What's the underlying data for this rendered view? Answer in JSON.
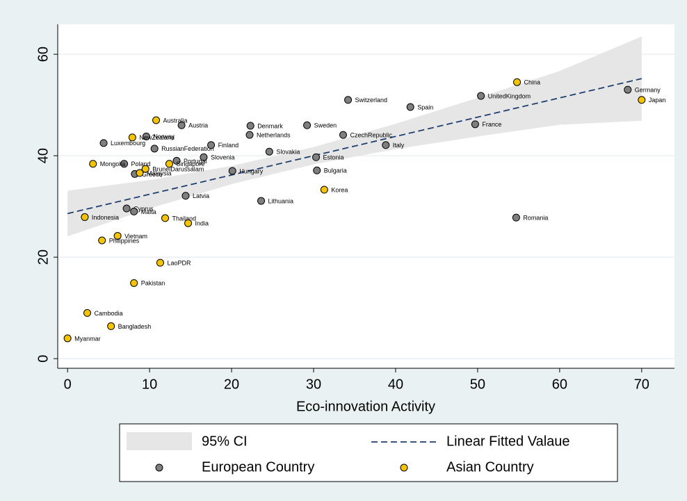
{
  "chart_data": {
    "type": "scatter",
    "xlabel": "Eco-innovation Activity",
    "xlim": [
      -1.2,
      74
    ],
    "ylim": [
      -1.9,
      65.9
    ],
    "xticks": [
      0,
      10,
      20,
      30,
      40,
      50,
      60,
      70
    ],
    "yticks": [
      0,
      20,
      40,
      60
    ],
    "grid": true,
    "ci": {
      "name": "95% CI",
      "color": "#e6e6e6",
      "x": [
        0,
        10,
        20,
        30,
        40,
        50,
        60,
        70
      ],
      "upper": [
        33.1,
        35.2,
        38.0,
        41.7,
        46.3,
        51.4,
        56.7,
        63.5
      ],
      "lower": [
        24.1,
        29.6,
        34.4,
        38.3,
        41.3,
        43.8,
        46.1,
        46.9
      ]
    },
    "fit": {
      "name": "Linear Fitted Valaue",
      "color": "#1f3f6e",
      "x": [
        0,
        70
      ],
      "y": [
        28.6,
        55.2
      ]
    },
    "series": [
      {
        "name": "European Country",
        "color": "#7f7f7f",
        "labels": [
          "Luxembourg",
          "Norway",
          "Austria",
          "RussianFederation",
          "Finland",
          "Denmark",
          "Netherlands",
          "Sweden",
          "Switzerland",
          "Spain",
          "UnitedKingdom",
          "Germany",
          "France",
          "Italy",
          "CzechRepublic",
          "Slovakia",
          "Estonia",
          "Bulgaria",
          "Hungary",
          "Slovenia",
          "Portugal",
          "Poland",
          "Latvia",
          "Lithuania",
          "Romania",
          "Cyprus",
          "Malta",
          "Greece"
        ],
        "x": [
          4.4,
          9.6,
          13.9,
          10.6,
          17.5,
          22.3,
          22.2,
          29.2,
          34.2,
          41.8,
          50.4,
          68.3,
          49.7,
          38.8,
          33.6,
          24.6,
          30.3,
          30.4,
          20.1,
          16.6,
          13.3,
          6.9,
          14.4,
          23.6,
          54.7,
          7.2,
          8.1,
          8.2
        ],
        "y": [
          42.5,
          43.8,
          46.0,
          41.4,
          42.1,
          45.9,
          44.1,
          46.0,
          51.0,
          49.6,
          51.8,
          53.0,
          46.2,
          42.1,
          44.1,
          40.8,
          39.7,
          37.1,
          37.0,
          39.7,
          39.0,
          38.4,
          32.1,
          31.1,
          27.8,
          29.6,
          29.0,
          36.4
        ]
      },
      {
        "name": "Asian Country",
        "color": "#f5c400",
        "labels": [
          "China",
          "Japan",
          "Australia",
          "NewZealand",
          "Singapore",
          "BruneiDarussalam",
          "Malaysia",
          "Mongolia",
          "Korea",
          "Thailand",
          "India",
          "Indonesia",
          "Vietnam",
          "Philippines",
          "LaoPDR",
          "Pakistan",
          "Cambodia",
          "Bangladesh",
          "Myanmar"
        ],
        "x": [
          54.8,
          70.0,
          10.8,
          7.9,
          12.4,
          9.5,
          8.8,
          3.1,
          31.3,
          11.9,
          14.7,
          2.1,
          6.1,
          4.2,
          11.3,
          8.1,
          2.4,
          5.3,
          0
        ],
        "y": [
          54.5,
          51.0,
          47.0,
          43.6,
          38.4,
          37.4,
          36.6,
          38.4,
          33.3,
          27.7,
          26.7,
          27.9,
          24.2,
          23.3,
          18.9,
          14.9,
          9.0,
          6.4,
          4.0
        ]
      }
    ]
  }
}
